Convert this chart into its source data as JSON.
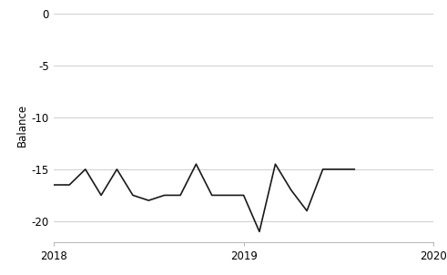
{
  "x": [
    2018.0,
    2018.083,
    2018.167,
    2018.25,
    2018.333,
    2018.417,
    2018.5,
    2018.583,
    2018.667,
    2018.75,
    2018.833,
    2018.917,
    2019.0,
    2019.083,
    2019.167,
    2019.25,
    2019.333,
    2019.417,
    2019.5,
    2019.583
  ],
  "y": [
    -16.5,
    -16.5,
    -15.0,
    -17.5,
    -15.0,
    -17.5,
    -18.0,
    -17.5,
    -17.5,
    -14.5,
    -17.5,
    -17.5,
    -17.5,
    -21.0,
    -14.5,
    -17.0,
    -19.0,
    -15.0,
    -15.0,
    -15.0
  ],
  "xlim": [
    2018,
    2020
  ],
  "ylim": [
    -22,
    0.5
  ],
  "yticks": [
    0,
    -5,
    -10,
    -15,
    -20
  ],
  "xticks": [
    2018,
    2019,
    2020
  ],
  "ylabel": "Balance",
  "line_color": "#1a1a1a",
  "line_width": 1.2,
  "grid_color": "#c8c8c8",
  "bg_color": "#ffffff"
}
